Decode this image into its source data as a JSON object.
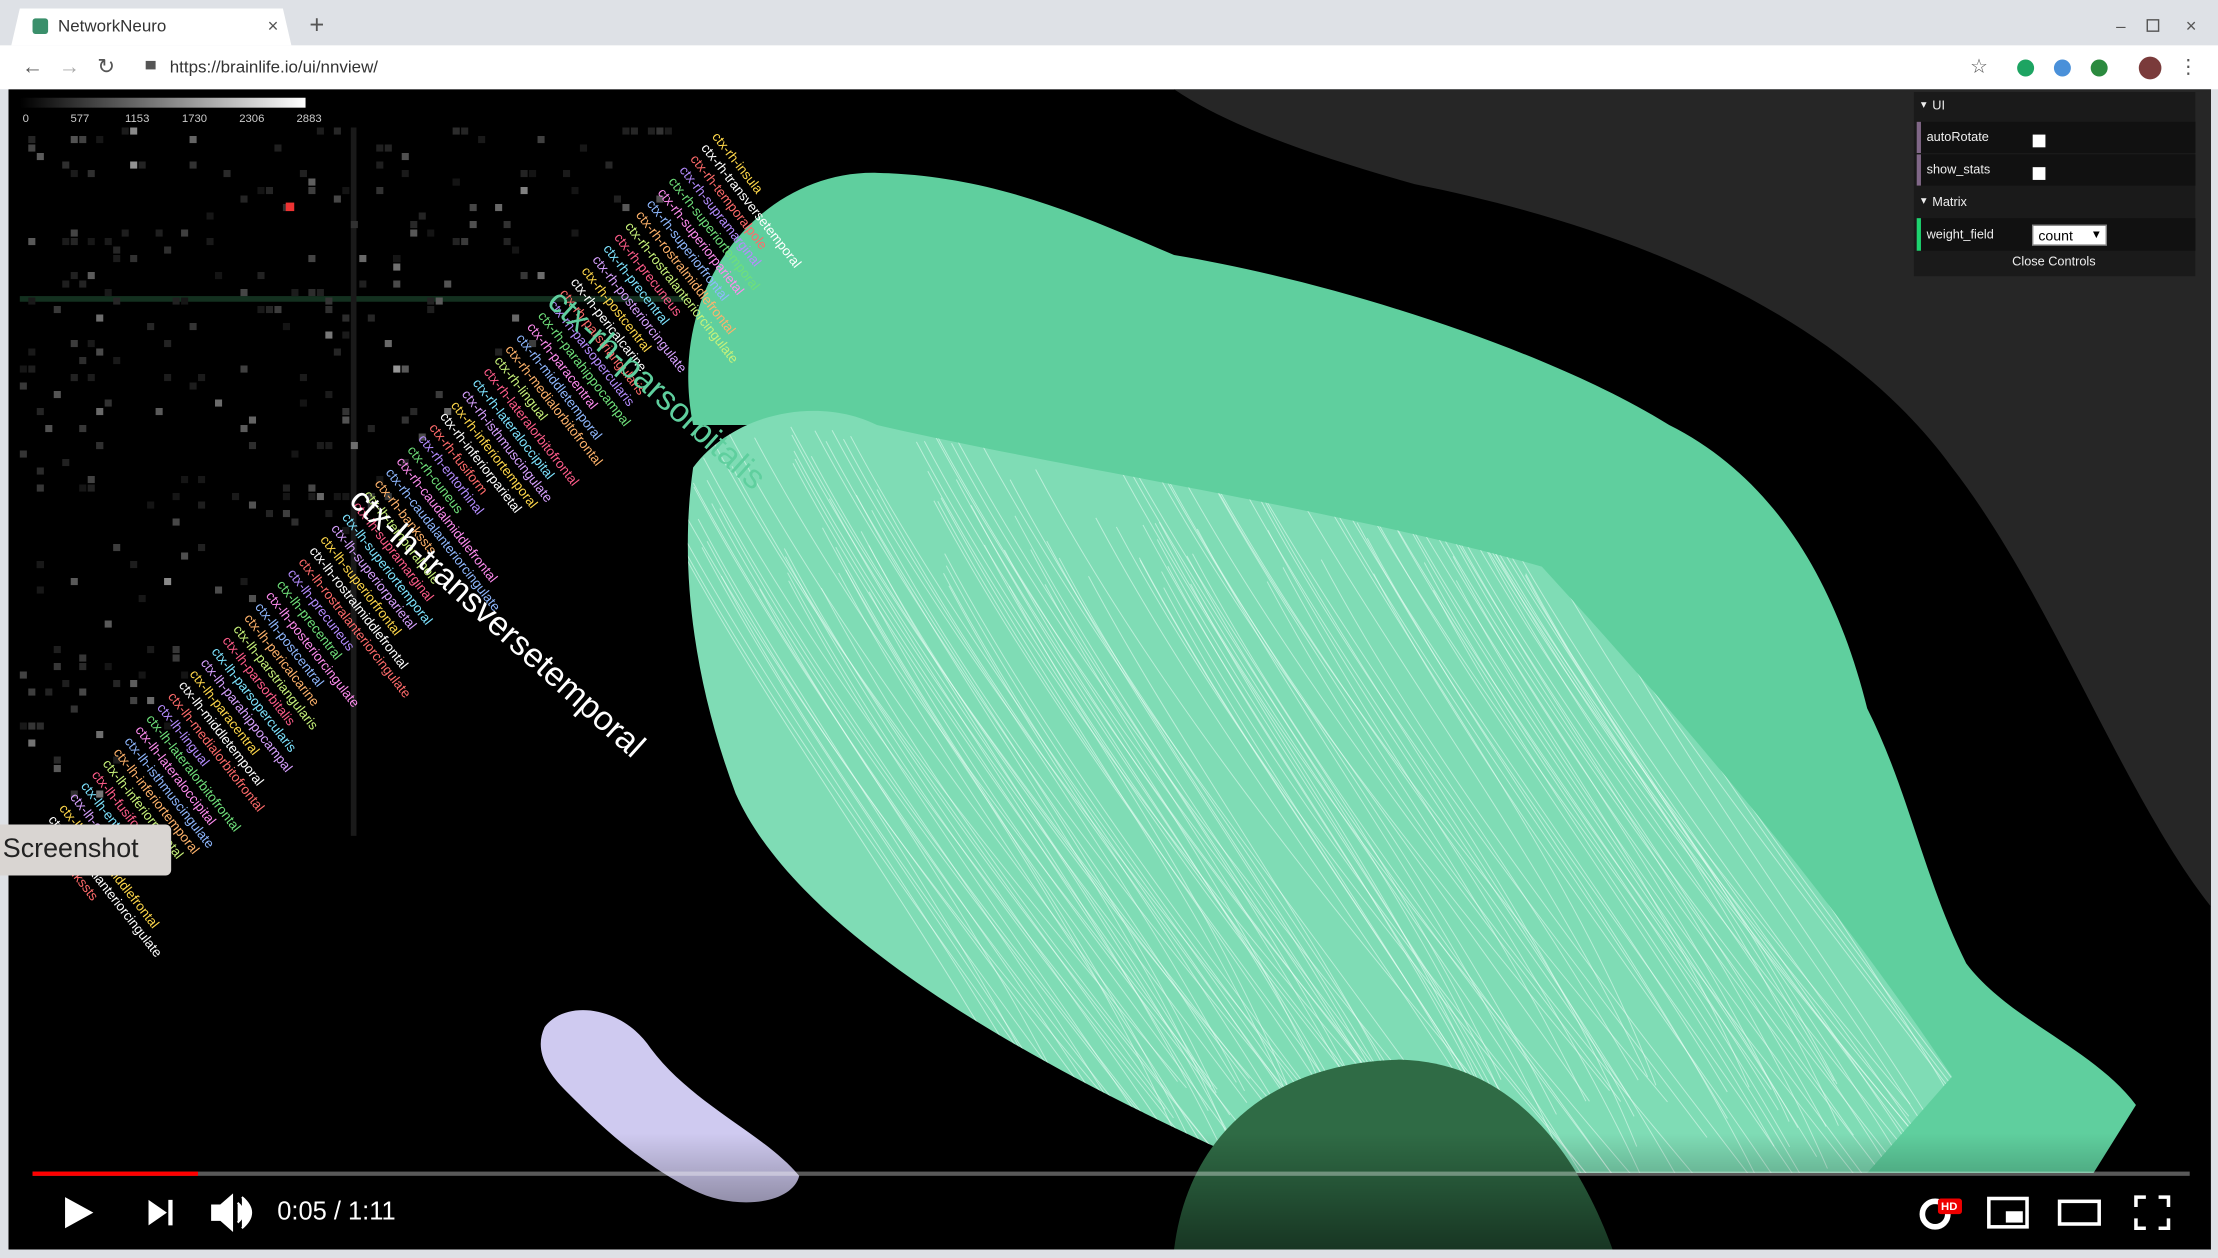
{
  "browser": {
    "tab_title": "NetworkNeuro",
    "url": "https://brainlife.io/ui/nnview/"
  },
  "colorbar": {
    "ticks": [
      0,
      577,
      1153,
      1730,
      2306,
      2883
    ]
  },
  "labels": {
    "large": [
      "ctx-rh-parsorbitalis",
      "ctx-lh-transversetemporal"
    ],
    "small": [
      "ctx-rh-insula",
      "ctx-rh-transversetemporal",
      "ctx-rh-temporalpole",
      "ctx-rh-supramarginal",
      "ctx-rh-superiortemporal",
      "ctx-rh-superiorparietal",
      "ctx-rh-superiorfrontal",
      "ctx-rh-rostralmiddlefrontal",
      "ctx-rh-rostralanteriorcingulate",
      "ctx-rh-precuneus",
      "ctx-rh-precentral",
      "ctx-rh-posteriorcingulate",
      "ctx-rh-postcentral",
      "ctx-rh-pericalcarine",
      "ctx-rh-parstriangularis",
      "ctx-rh-parsopercularis",
      "ctx-rh-parahippocampal",
      "ctx-rh-paracentral",
      "ctx-rh-middletemporal",
      "ctx-rh-medialorbitofrontal",
      "ctx-rh-lingual",
      "ctx-rh-lateralorbitofrontal",
      "ctx-rh-lateraloccipital",
      "ctx-rh-isthmuscingulate",
      "ctx-rh-inferiortemporal",
      "ctx-rh-inferiorparietal",
      "ctx-rh-fusiform",
      "ctx-rh-entorhinal",
      "ctx-rh-cuneus",
      "ctx-rh-caudalmiddlefrontal",
      "ctx-rh-caudalanteriorcingulate",
      "ctx-rh-bankssts",
      "ctx-lh-temporalpole",
      "ctx-lh-supramarginal",
      "ctx-lh-superiortemporal",
      "ctx-lh-superiorparietal",
      "ctx-lh-superiorfrontal",
      "ctx-lh-rostralmiddlefrontal",
      "ctx-lh-rostralanteriorcingulate",
      "ctx-lh-precuneus",
      "ctx-lh-precentral",
      "ctx-lh-posteriorcingulate",
      "ctx-lh-postcentral",
      "ctx-lh-pericalcarine",
      "ctx-lh-parstriangularis",
      "ctx-lh-parsorbitalis",
      "ctx-lh-parsopercularis",
      "ctx-lh-parahippocampal",
      "ctx-lh-paracentral",
      "ctx-lh-middletemporal",
      "ctx-lh-medialorbitofrontal",
      "ctx-lh-lingual",
      "ctx-lh-lateralorbitofrontal",
      "ctx-lh-lateraloccipital",
      "ctx-lh-isthmuscingulate",
      "ctx-lh-inferiortemporal",
      "ctx-lh-inferiorparietal",
      "ctx-lh-fusiform",
      "ctx-lh-entorhinal",
      "ctx-lh-cuneus",
      "ctx-lh-caudalmiddlefrontal",
      "ctx-lh-caudalanteriorcingulate",
      "ctx-lh-bankssts"
    ]
  },
  "controls": {
    "ui_folder": "UI",
    "auto_rotate": "autoRotate",
    "show_stats": "show_stats",
    "matrix_folder": "Matrix",
    "weight_field": "weight_field",
    "weight_value": "count",
    "close": "Close Controls"
  },
  "overlay": {
    "screenshot": "Screenshot"
  },
  "player": {
    "time": "0:05 / 1:11",
    "hd": "HD"
  }
}
